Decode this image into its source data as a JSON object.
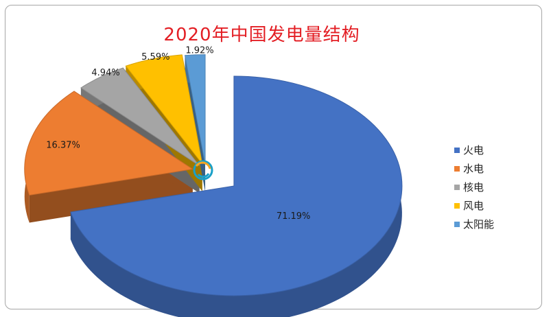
{
  "chart_data": {
    "type": "pie",
    "title": "2020年中国发电量结构",
    "categories": [
      "火电",
      "水电",
      "核电",
      "风电",
      "太阳能"
    ],
    "values": [
      71.19,
      16.37,
      4.94,
      5.59,
      1.92
    ],
    "data_labels": [
      "71.19%",
      "16.37%",
      "4.94%",
      "5.59%",
      "1.92%"
    ],
    "colors": [
      "#4472c4",
      "#ed7d31",
      "#a5a5a5",
      "#ffc000",
      "#5b9bd5"
    ],
    "style": "3d-exploded",
    "legend_position": "right"
  }
}
